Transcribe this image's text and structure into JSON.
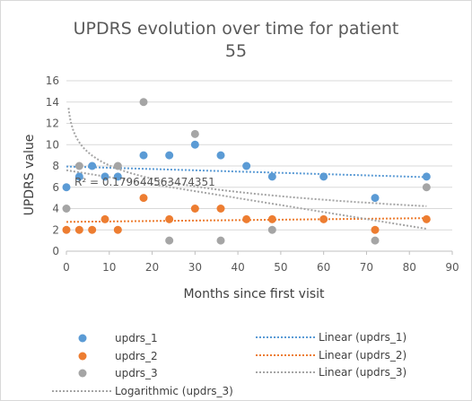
{
  "chart_data": {
    "type": "scatter",
    "title_line1": "UPDRS evolution over time for patient",
    "title_line2": "55",
    "xlabel": "Months since first visit",
    "ylabel": "UPDRS value",
    "xlim": [
      0,
      90
    ],
    "ylim": [
      0,
      16
    ],
    "x_ticks": [
      "0",
      "10",
      "20",
      "30",
      "40",
      "50",
      "60",
      "70",
      "80",
      "90"
    ],
    "y_ticks": [
      "0",
      "2",
      "4",
      "6",
      "8",
      "10",
      "12",
      "14",
      "16"
    ],
    "grid": "horizontal",
    "annotation": "R² = 0.179644563474351",
    "legend_position": "bottom",
    "series": [
      {
        "name": "updrs_1",
        "color": "#5B9BD5",
        "points": [
          [
            0,
            6
          ],
          [
            3,
            7
          ],
          [
            6,
            8
          ],
          [
            9,
            7
          ],
          [
            12,
            7
          ],
          [
            18,
            9
          ],
          [
            24,
            9
          ],
          [
            30,
            10
          ],
          [
            36,
            9
          ],
          [
            42,
            8
          ],
          [
            48,
            7
          ],
          [
            60,
            7
          ],
          [
            72,
            5
          ],
          [
            84,
            7
          ]
        ]
      },
      {
        "name": "updrs_2",
        "color": "#ED7D31",
        "points": [
          [
            0,
            2
          ],
          [
            3,
            2
          ],
          [
            6,
            2
          ],
          [
            9,
            3
          ],
          [
            12,
            2
          ],
          [
            18,
            5
          ],
          [
            24,
            3
          ],
          [
            30,
            4
          ],
          [
            36,
            4
          ],
          [
            42,
            3
          ],
          [
            48,
            3
          ],
          [
            60,
            3
          ],
          [
            72,
            2
          ],
          [
            84,
            3
          ]
        ]
      },
      {
        "name": "updrs_3",
        "color": "#A5A5A5",
        "points": [
          [
            0,
            4
          ],
          [
            3,
            8
          ],
          [
            12,
            8
          ],
          [
            18,
            14
          ],
          [
            24,
            1
          ],
          [
            30,
            11
          ],
          [
            36,
            1
          ],
          [
            48,
            2
          ],
          [
            72,
            1
          ],
          [
            84,
            6
          ]
        ]
      }
    ],
    "trendlines": [
      {
        "name": "Linear (updrs_1)",
        "type": "linear",
        "color": "#5B9BD5",
        "x_range": [
          0,
          84
        ],
        "y_start": 7.95,
        "y_end": 6.95
      },
      {
        "name": "Linear (updrs_2)",
        "type": "linear",
        "color": "#ED7D31",
        "x_range": [
          0,
          84
        ],
        "y_start": 2.75,
        "y_end": 3.1
      },
      {
        "name": "Linear (updrs_3)",
        "type": "linear",
        "color": "#A5A5A5",
        "x_range": [
          0,
          84
        ],
        "y_start": 7.6,
        "y_end": 2.1
      },
      {
        "name": "Logarithmic (updrs_3)",
        "type": "logarithmic",
        "color": "#A5A5A5",
        "x_range": [
          0,
          84
        ],
        "a": 12.2,
        "b": -1.8
      }
    ]
  }
}
